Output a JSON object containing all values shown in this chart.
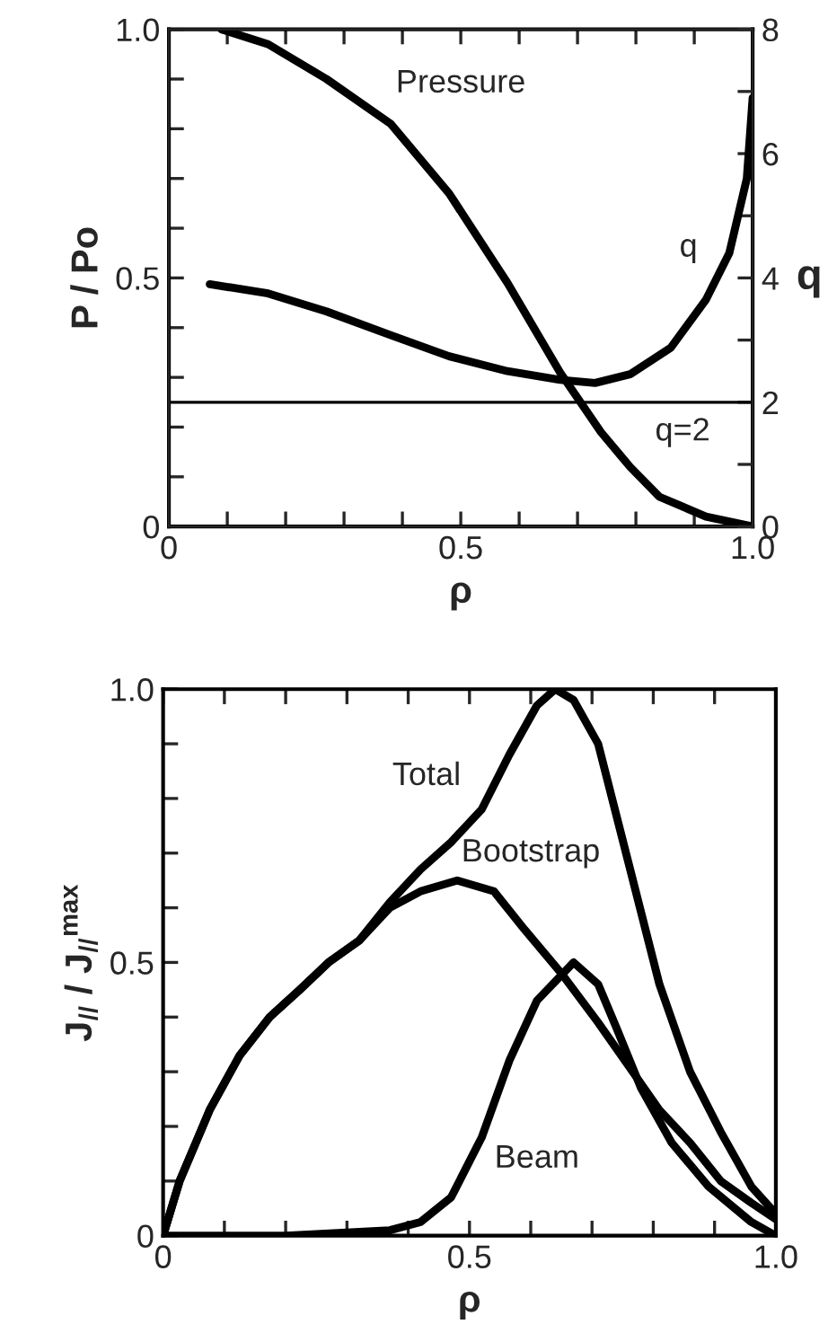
{
  "chart_data": [
    {
      "type": "line",
      "xlabel": "ρ",
      "ylabel": "P / Po",
      "y2label": "q",
      "xlim": [
        0,
        1
      ],
      "ylim": [
        0,
        1
      ],
      "y2lim": [
        0,
        8
      ],
      "xticks": [
        0,
        {
          "value": 0.1,
          "label": null
        },
        {
          "value": 0.2,
          "label": null
        },
        {
          "value": 0.3,
          "label": null
        },
        {
          "value": 0.4,
          "label": null
        },
        0.5,
        {
          "value": 0.6,
          "label": null
        },
        {
          "value": 0.7,
          "label": null
        },
        {
          "value": 0.8,
          "label": null
        },
        {
          "value": 0.9,
          "label": null
        },
        {
          "value": 1,
          "label": "1.0"
        }
      ],
      "yticks": [
        0,
        {
          "value": 0.1,
          "label": null
        },
        {
          "value": 0.2,
          "label": null
        },
        {
          "value": 0.3,
          "label": null
        },
        {
          "value": 0.4,
          "label": null
        },
        0.5,
        {
          "value": 0.6,
          "label": null
        },
        {
          "value": 0.7,
          "label": null
        },
        {
          "value": 0.8,
          "label": null
        },
        {
          "value": 0.9,
          "label": null
        },
        {
          "value": 1,
          "label": "1.0"
        }
      ],
      "y2ticks": [
        0,
        {
          "value": 1,
          "label": null
        },
        2,
        {
          "value": 3,
          "label": null
        },
        4,
        {
          "value": 5,
          "label": null
        },
        6,
        {
          "value": 7,
          "label": null
        },
        8
      ],
      "ref_lines": [
        {
          "axis": "y2",
          "value": 2,
          "label": "q=2",
          "color": "#000000"
        }
      ],
      "series": [
        {
          "name": "Pressure",
          "color": "#000000",
          "x": [
            0.09,
            0.17,
            0.27,
            0.38,
            0.48,
            0.58,
            0.67,
            0.74,
            0.79,
            0.84,
            0.92,
            1.0
          ],
          "values": [
            1.0,
            0.97,
            0.9,
            0.81,
            0.67,
            0.49,
            0.31,
            0.19,
            0.12,
            0.06,
            0.02,
            0
          ]
        },
        {
          "name": "q",
          "color": "#000000",
          "axis": "y2",
          "x": [
            0.07,
            0.17,
            0.27,
            0.38,
            0.48,
            0.58,
            0.67,
            0.73,
            0.79,
            0.86,
            0.92,
            0.96,
            0.99,
            1.0
          ],
          "values": [
            3.9,
            3.75,
            3.46,
            3.08,
            2.74,
            2.5,
            2.36,
            2.31,
            2.45,
            2.88,
            3.65,
            4.4,
            5.6,
            6.9
          ]
        }
      ]
    },
    {
      "type": "line",
      "xlabel": "ρ",
      "ylabel": "J$_{//}$ / J$_{//}$$^{max}$",
      "xlim": [
        0,
        1
      ],
      "ylim": [
        0,
        1
      ],
      "xticks": [
        0,
        {
          "value": 0.1,
          "label": null
        },
        {
          "value": 0.2,
          "label": null
        },
        {
          "value": 0.3,
          "label": null
        },
        {
          "value": 0.4,
          "label": null
        },
        0.5,
        {
          "value": 0.6,
          "label": null
        },
        {
          "value": 0.7,
          "label": null
        },
        {
          "value": 0.8,
          "label": null
        },
        {
          "value": 0.9,
          "label": null
        },
        {
          "value": 1,
          "label": "1.0"
        }
      ],
      "yticks": [
        0,
        {
          "value": 0.1,
          "label": null
        },
        {
          "value": 0.2,
          "label": null
        },
        {
          "value": 0.3,
          "label": null
        },
        {
          "value": 0.4,
          "label": null
        },
        0.5,
        {
          "value": 0.6,
          "label": null
        },
        {
          "value": 0.7,
          "label": null
        },
        {
          "value": 0.8,
          "label": null
        },
        {
          "value": 0.9,
          "label": null
        },
        {
          "value": 1,
          "label": "1.0"
        }
      ],
      "series": [
        {
          "name": "Total",
          "color": "#000000",
          "x": [
            0,
            0.027,
            0.076,
            0.125,
            0.174,
            0.223,
            0.27,
            0.32,
            0.37,
            0.42,
            0.47,
            0.52,
            0.565,
            0.61,
            0.64,
            0.67,
            0.71,
            0.76,
            0.81,
            0.86,
            0.91,
            0.96,
            1.0
          ],
          "values": [
            0,
            0.1,
            0.23,
            0.33,
            0.4,
            0.45,
            0.5,
            0.54,
            0.61,
            0.67,
            0.72,
            0.78,
            0.88,
            0.97,
            1.0,
            0.98,
            0.9,
            0.68,
            0.46,
            0.3,
            0.19,
            0.09,
            0.04
          ]
        },
        {
          "name": "Bootstrap",
          "color": "#000000",
          "x": [
            0,
            0.027,
            0.076,
            0.125,
            0.174,
            0.223,
            0.27,
            0.32,
            0.37,
            0.42,
            0.48,
            0.54,
            0.59,
            0.65,
            0.71,
            0.76,
            0.81,
            0.86,
            0.91,
            0.96,
            1.0
          ],
          "values": [
            0,
            0.1,
            0.23,
            0.33,
            0.4,
            0.45,
            0.5,
            0.54,
            0.6,
            0.63,
            0.65,
            0.63,
            0.56,
            0.48,
            0.39,
            0.31,
            0.23,
            0.17,
            0.1,
            0.06,
            0.03
          ]
        },
        {
          "name": "Beam",
          "color": "#000000",
          "x": [
            0,
            0.2,
            0.37,
            0.42,
            0.47,
            0.52,
            0.565,
            0.61,
            0.67,
            0.71,
            0.74,
            0.78,
            0.83,
            0.89,
            0.96,
            1.0
          ],
          "values": [
            0,
            0,
            0.01,
            0.025,
            0.07,
            0.18,
            0.32,
            0.43,
            0.5,
            0.46,
            0.38,
            0.27,
            0.17,
            0.09,
            0.025,
            0
          ]
        }
      ]
    }
  ]
}
